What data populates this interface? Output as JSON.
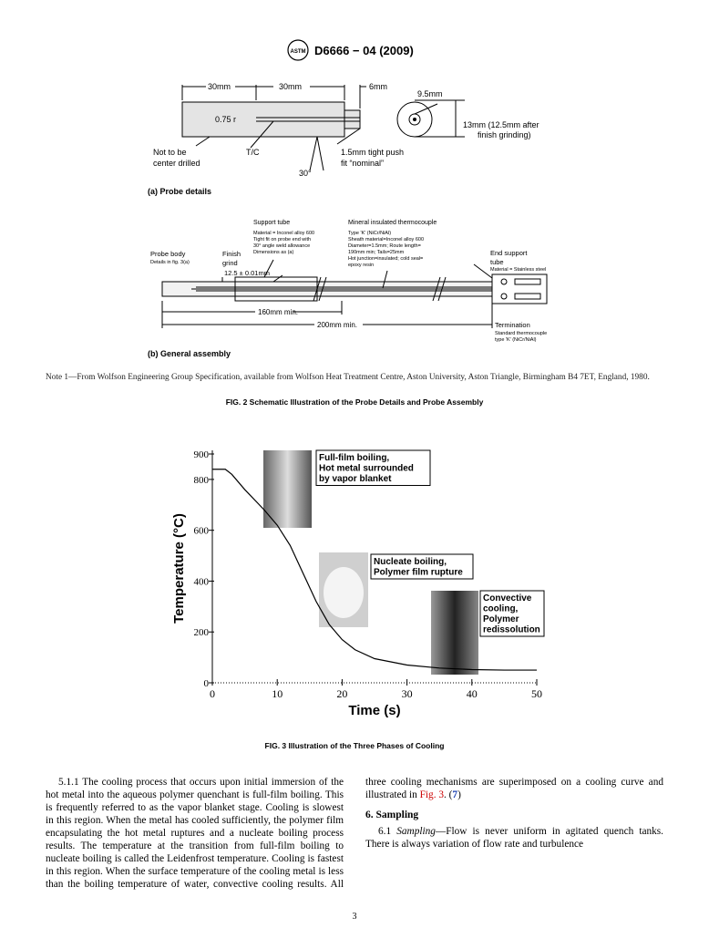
{
  "header": {
    "title": "D6666 − 04 (2009)"
  },
  "figure2": {
    "probe_details": {
      "labels": [
        "30mm",
        "30mm",
        "6mm",
        "0.75 r",
        "9.5mm",
        "13mm (12.5mm after",
        "finish grinding)",
        "Not to be",
        "center drilled",
        "T/C",
        "1.5mm tight push",
        "fit “nominal”",
        "30°"
      ],
      "caption": "(a) Probe details"
    },
    "general_assembly": {
      "labels": [
        "Support tube",
        "Material = Inconel alloy 600",
        "Tight fit on probe end with",
        "30° angle weld allowance",
        "Dimensions as (a)",
        "Mineral insulated thermocouple",
        "Type 'K' (NiCr/NiAl)",
        "Sheath material=Inconel alloy 600",
        "Diameter=1.5mm; Route length=",
        "190mm min; Tails=25mm",
        "Hot junction=insulated; cold seal=",
        "epoxy resin",
        "Probe body",
        "Details in fig. 3(a)",
        "Finish",
        "grind",
        "12.5 ± 0.01mm",
        "End support",
        "tube",
        "Material = Stainless steel",
        "160mm min.",
        "200mm min.",
        "Termination",
        "Standard thermocouple",
        "type 'K' (NiCr/NiAl)"
      ],
      "caption": "(b) General assembly"
    },
    "note": "Note 1—From Wolfson Engineering Group Specification, available from Wolfson Heat Treatment Centre, Aston University, Aston Triangle, Birmingham B4 7ET, England, 1980.",
    "caption": "FIG. 2 Schematic Illustration of the Probe Details and Probe Assembly"
  },
  "figure3": {
    "type": "line",
    "x": [
      0,
      2,
      3,
      5,
      8,
      10,
      12,
      14,
      16,
      18,
      20,
      22,
      25,
      30,
      35,
      40,
      45,
      50
    ],
    "series": [
      {
        "name": "Temperature",
        "color": "#000000",
        "values": [
          840,
          840,
          820,
          760,
          680,
          620,
          540,
          430,
          320,
          230,
          170,
          130,
          95,
          70,
          58,
          52,
          50,
          50
        ]
      }
    ],
    "xlim": [
      0,
      50
    ],
    "ylim": [
      0,
      900
    ],
    "xticks": [
      0,
      10,
      20,
      30,
      40,
      50
    ],
    "yticks": [
      0,
      200,
      400,
      600,
      800,
      900
    ],
    "xlabel": "Time (s)",
    "ylabel": "Temperature (°C)",
    "annotations": [
      [
        "Full-film boiling,",
        "Hot metal surrounded",
        "by vapor blanket"
      ],
      [
        "Nucleate boiling,",
        "Polymer film rupture"
      ],
      [
        "Convective",
        "cooling,",
        "Polymer",
        "redissolution"
      ]
    ],
    "caption": "FIG. 3 Illustration of the Three Phases of Cooling"
  },
  "body": {
    "p1": "5.1.1 The cooling process that occurs upon initial immersion of the hot metal into the aqueous polymer quenchant is full-film boiling. This is frequently referred to as the vapor blanket stage. Cooling is slowest in this region. When the metal has cooled sufficiently, the polymer film encapsulating the hot metal ruptures and a nucleate boiling process results. The temperature at the transition from full-film boiling to nucleate boiling is called the Leidenfrost temperature. Cooling is fastest in this region. When the surface temperature of the cooling metal is less than the boiling temperature of water, convective cooling results. All three cooling mechanisms are superimposed on a cooling curve and illustrated in",
    "p1_link": "Fig. 3",
    "p1_mid": ". (",
    "p1_ref": "7",
    "p1_end": ")",
    "heading": "6. Sampling",
    "p2_num": "6.1",
    "p2_term": "Sampling",
    "p2": "—Flow is never uniform in agitated quench tanks. There is always variation of flow rate and turbulence"
  },
  "page_number": "3"
}
